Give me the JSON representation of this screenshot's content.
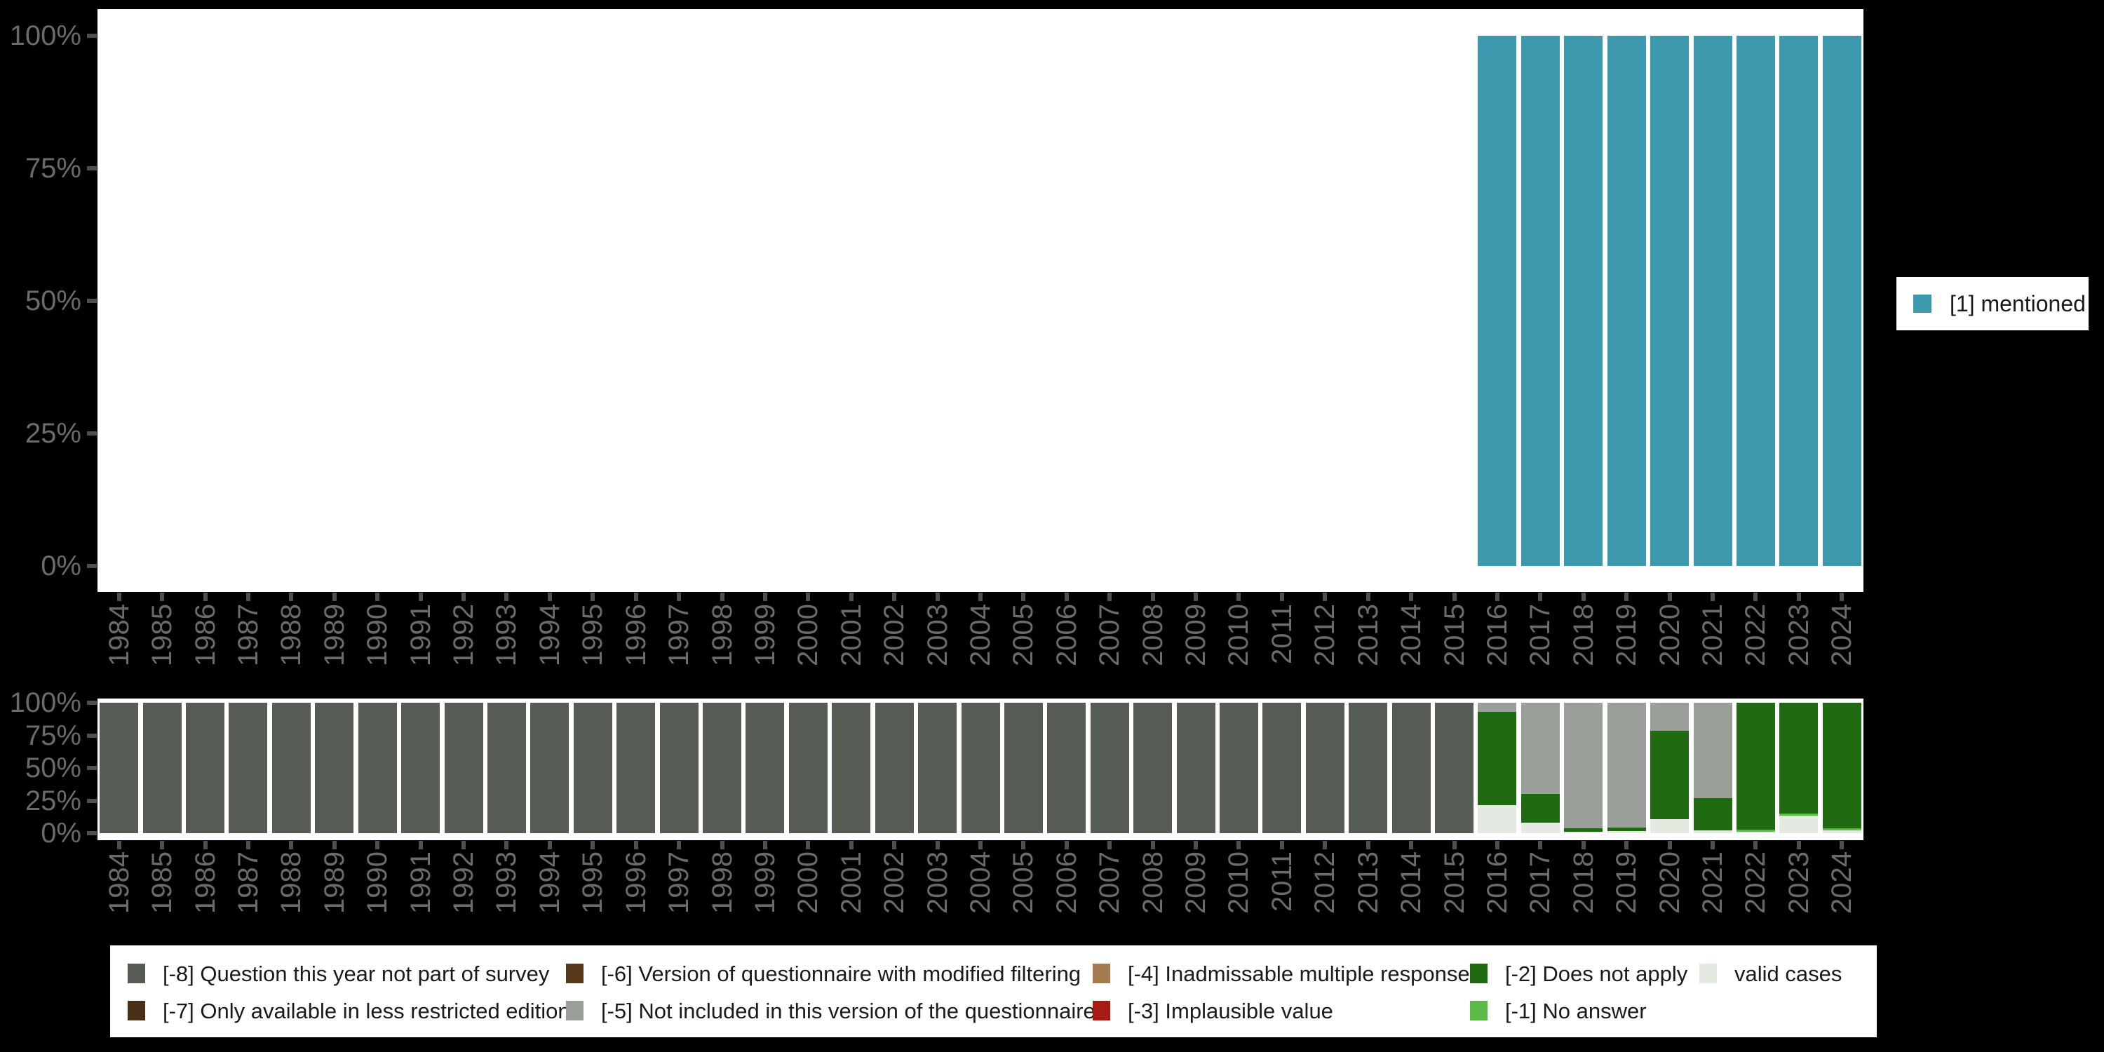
{
  "colors": {
    "background": "#000000",
    "plot_background": "#ffffff",
    "axis_text": "#6b6b6b",
    "tick": "#4f4f4f",
    "legend_text": "#1a1a1a",
    "mentioned": "#3d99ae",
    "minus8": "#565c54",
    "minus7": "#4a3018",
    "minus6": "#573818",
    "minus5": "#9aa099",
    "minus4": "#a57c50",
    "minus3": "#a81b12",
    "minus2": "#206a12",
    "minus1": "#5bbb46",
    "valid": "#e4e9e1"
  },
  "top_legend": {
    "label": "[1] mentioned",
    "color_key": "mentioned"
  },
  "bottom_legend": {
    "columns": [
      {
        "items": [
          {
            "key": "minus8",
            "label": "[-8] Question this year not part of survey"
          },
          {
            "key": "minus7",
            "label": "[-7] Only available in less restricted edition"
          }
        ]
      },
      {
        "items": [
          {
            "key": "minus6",
            "label": "[-6] Version of questionnaire with modified filtering"
          },
          {
            "key": "minus5",
            "label": "[-5] Not included in this version of the questionnaire"
          }
        ]
      },
      {
        "items": [
          {
            "key": "minus4",
            "label": "[-4] Inadmissable multiple response"
          },
          {
            "key": "minus3",
            "label": "[-3] Implausible value"
          }
        ]
      },
      {
        "items": [
          {
            "key": "minus2",
            "label": "[-2] Does not apply"
          },
          {
            "key": "minus1",
            "label": "[-1] No answer"
          }
        ]
      },
      {
        "items": [
          {
            "key": "valid",
            "label": "valid cases"
          }
        ]
      }
    ]
  },
  "chart_data": [
    {
      "id": "mentioned-by-year",
      "type": "bar",
      "title": "",
      "xlabel": "",
      "ylabel": "",
      "ylim": [
        0,
        100
      ],
      "grid": false,
      "legend_position": "right",
      "x": [
        "1984",
        "1985",
        "1986",
        "1987",
        "1988",
        "1989",
        "1990",
        "1991",
        "1992",
        "1993",
        "1994",
        "1995",
        "1996",
        "1997",
        "1998",
        "1999",
        "2000",
        "2001",
        "2002",
        "2003",
        "2004",
        "2005",
        "2006",
        "2007",
        "2008",
        "2009",
        "2010",
        "2011",
        "2012",
        "2013",
        "2014",
        "2015",
        "2016",
        "2017",
        "2018",
        "2019",
        "2020",
        "2021",
        "2022",
        "2023",
        "2024"
      ],
      "y_ticks": [
        {
          "pct": 0,
          "label": "0%"
        },
        {
          "pct": 25,
          "label": "25%"
        },
        {
          "pct": 50,
          "label": "50%"
        },
        {
          "pct": 75,
          "label": "75%"
        },
        {
          "pct": 100,
          "label": "100%"
        }
      ],
      "series": [
        {
          "name": "[1] mentioned",
          "color_key": "mentioned",
          "values": [
            null,
            null,
            null,
            null,
            null,
            null,
            null,
            null,
            null,
            null,
            null,
            null,
            null,
            null,
            null,
            null,
            null,
            null,
            null,
            null,
            null,
            null,
            null,
            null,
            null,
            null,
            null,
            null,
            null,
            null,
            null,
            null,
            100,
            100,
            100,
            100,
            100,
            100,
            100,
            100,
            100
          ]
        }
      ]
    },
    {
      "id": "missing-values-by-year",
      "type": "stacked-bar",
      "title": "",
      "xlabel": "",
      "ylabel": "",
      "ylim": [
        0,
        100
      ],
      "grid": false,
      "legend_position": "bottom",
      "x": [
        "1984",
        "1985",
        "1986",
        "1987",
        "1988",
        "1989",
        "1990",
        "1991",
        "1992",
        "1993",
        "1994",
        "1995",
        "1996",
        "1997",
        "1998",
        "1999",
        "2000",
        "2001",
        "2002",
        "2003",
        "2004",
        "2005",
        "2006",
        "2007",
        "2008",
        "2009",
        "2010",
        "2011",
        "2012",
        "2013",
        "2014",
        "2015",
        "2016",
        "2017",
        "2018",
        "2019",
        "2020",
        "2021",
        "2022",
        "2023",
        "2024"
      ],
      "y_ticks": [
        {
          "pct": 0,
          "label": "0%"
        },
        {
          "pct": 25,
          "label": "25%"
        },
        {
          "pct": 50,
          "label": "50%"
        },
        {
          "pct": 75,
          "label": "75%"
        },
        {
          "pct": 100,
          "label": "100%"
        }
      ],
      "series": [
        {
          "name": "valid cases",
          "color_key": "valid",
          "values": [
            0,
            0,
            0,
            0,
            0,
            0,
            0,
            0,
            0,
            0,
            0,
            0,
            0,
            0,
            0,
            0,
            0,
            0,
            0,
            0,
            0,
            0,
            0,
            0,
            0,
            0,
            0,
            0,
            0,
            0,
            0,
            0,
            21.5,
            8,
            1,
            1.5,
            11,
            2,
            1,
            13.5,
            2
          ]
        },
        {
          "name": "[-1] No answer",
          "color_key": "minus1",
          "values": [
            0,
            0,
            0,
            0,
            0,
            0,
            0,
            0,
            0,
            0,
            0,
            0,
            0,
            0,
            0,
            0,
            0,
            0,
            0,
            0,
            0,
            0,
            0,
            0,
            0,
            0,
            0,
            0,
            0,
            0,
            0,
            0,
            0,
            0,
            0,
            0,
            0,
            0,
            1.5,
            1.5,
            2
          ]
        },
        {
          "name": "[-2] Does not apply",
          "color_key": "minus2",
          "values": [
            0,
            0,
            0,
            0,
            0,
            0,
            0,
            0,
            0,
            0,
            0,
            0,
            0,
            0,
            0,
            0,
            0,
            0,
            0,
            0,
            0,
            0,
            0,
            0,
            0,
            0,
            0,
            0,
            0,
            0,
            0,
            0,
            71.5,
            22,
            2.5,
            3,
            67.5,
            25,
            97.5,
            85,
            96
          ]
        },
        {
          "name": "[-5] Not included in this version of the questionnaire",
          "color_key": "minus5",
          "values": [
            0,
            0,
            0,
            0,
            0,
            0,
            0,
            0,
            0,
            0,
            0,
            0,
            0,
            0,
            0,
            0,
            0,
            0,
            0,
            0,
            0,
            0,
            0,
            0,
            0,
            0,
            0,
            0,
            0,
            0,
            0,
            0,
            7,
            70,
            96.5,
            95.5,
            21.5,
            73,
            0,
            0,
            0
          ]
        },
        {
          "name": "[-8] Question this year not part of survey",
          "color_key": "minus8",
          "values": [
            100,
            100,
            100,
            100,
            100,
            100,
            100,
            100,
            100,
            100,
            100,
            100,
            100,
            100,
            100,
            100,
            100,
            100,
            100,
            100,
            100,
            100,
            100,
            100,
            100,
            100,
            100,
            100,
            100,
            100,
            100,
            100,
            0,
            0,
            0,
            0,
            0,
            0,
            0,
            0,
            0
          ]
        }
      ]
    }
  ]
}
